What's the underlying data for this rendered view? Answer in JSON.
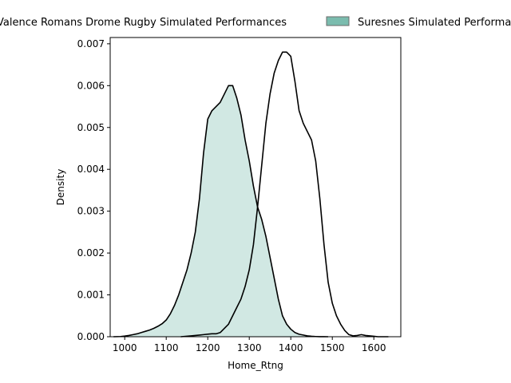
{
  "chart_data": {
    "type": "area",
    "title": "",
    "xlabel": "Home_Rtng",
    "ylabel": "Density",
    "xlim": [
      965,
      1665
    ],
    "ylim": [
      0,
      0.00715
    ],
    "x_ticks": [
      {
        "value": 1000,
        "label": "1000"
      },
      {
        "value": 1100,
        "label": "1100"
      },
      {
        "value": 1200,
        "label": "1200"
      },
      {
        "value": 1300,
        "label": "1300"
      },
      {
        "value": 1400,
        "label": "1400"
      },
      {
        "value": 1500,
        "label": "1500"
      },
      {
        "value": 1600,
        "label": "1600"
      }
    ],
    "y_ticks": [
      {
        "value": 0.0,
        "label": "0.000"
      },
      {
        "value": 0.001,
        "label": "0.001"
      },
      {
        "value": 0.002,
        "label": "0.002"
      },
      {
        "value": 0.003,
        "label": "0.003"
      },
      {
        "value": 0.004,
        "label": "0.004"
      },
      {
        "value": 0.005,
        "label": "0.005"
      },
      {
        "value": 0.006,
        "label": "0.006"
      },
      {
        "value": 0.007,
        "label": "0.007"
      }
    ],
    "grid": false,
    "legend_position": "top",
    "series": [
      {
        "name": "Valence Romans Drome Rugby Simulated Performances",
        "fill": "#ffffff",
        "fill_opacity": 0,
        "legend_fill": "#ffffff",
        "line_color": "#000000",
        "x": [
          1135,
          1160,
          1170,
          1180,
          1190,
          1200,
          1210,
          1220,
          1230,
          1240,
          1250,
          1260,
          1270,
          1280,
          1290,
          1300,
          1310,
          1320,
          1330,
          1340,
          1350,
          1360,
          1370,
          1380,
          1390,
          1400,
          1410,
          1420,
          1430,
          1440,
          1450,
          1460,
          1470,
          1480,
          1490,
          1500,
          1510,
          1520,
          1530,
          1540,
          1550,
          1560,
          1570,
          1580,
          1590,
          1600,
          1610,
          1620,
          1635
        ],
        "y": [
          0.0,
          2e-05,
          3e-05,
          4e-05,
          5e-05,
          6e-05,
          7e-05,
          7e-05,
          0.0001,
          0.0002,
          0.0003,
          0.0005,
          0.0007,
          0.0009,
          0.0012,
          0.0016,
          0.0022,
          0.0031,
          0.0041,
          0.0051,
          0.0058,
          0.0063,
          0.0066,
          0.0068,
          0.0068,
          0.0067,
          0.0061,
          0.0054,
          0.0051,
          0.0049,
          0.0047,
          0.0042,
          0.0033,
          0.0022,
          0.0013,
          0.0008,
          0.0005,
          0.0003,
          0.00015,
          5e-05,
          2e-05,
          3e-05,
          5e-05,
          3e-05,
          2e-05,
          1e-05,
          0.0,
          0.0,
          0.0
        ]
      },
      {
        "name": "Suresnes Simulated Performances",
        "fill": "#8cc5b8",
        "fill_opacity": 0.4,
        "legend_fill": "#7bbcae",
        "line_color": "#000000",
        "x": [
          973,
          990,
          1000,
          1010,
          1020,
          1030,
          1040,
          1050,
          1060,
          1070,
          1080,
          1090,
          1100,
          1110,
          1120,
          1130,
          1140,
          1150,
          1160,
          1170,
          1180,
          1190,
          1200,
          1210,
          1220,
          1230,
          1240,
          1250,
          1260,
          1270,
          1280,
          1290,
          1300,
          1310,
          1320,
          1330,
          1340,
          1350,
          1360,
          1370,
          1380,
          1390,
          1400,
          1410,
          1420,
          1430,
          1440,
          1450,
          1460,
          1470,
          1480,
          1490
        ],
        "y": [
          0.0,
          5e-06,
          1.5e-05,
          3e-05,
          5e-05,
          7e-05,
          0.0001,
          0.00013,
          0.00016,
          0.0002,
          0.00025,
          0.00031,
          0.0004,
          0.00055,
          0.00075,
          0.001,
          0.0013,
          0.0016,
          0.002,
          0.0025,
          0.0033,
          0.0044,
          0.0052,
          0.0054,
          0.0055,
          0.0056,
          0.0058,
          0.006,
          0.006,
          0.0057,
          0.0053,
          0.0047,
          0.0042,
          0.0036,
          0.0031,
          0.0028,
          0.0024,
          0.0019,
          0.0014,
          0.0009,
          0.0005,
          0.0003,
          0.00018,
          0.0001,
          6e-05,
          4e-05,
          2e-05,
          1e-05,
          5e-06,
          2e-06,
          1e-06,
          0.0
        ]
      }
    ]
  }
}
